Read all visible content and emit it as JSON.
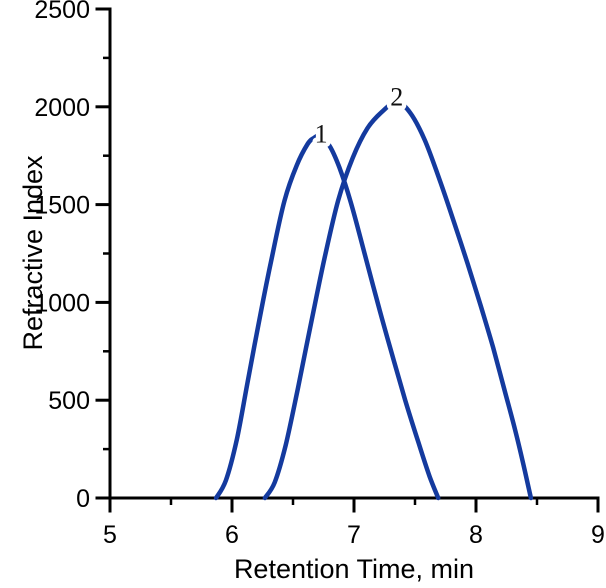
{
  "figure": {
    "background": "#ffffff"
  },
  "chart_data": {
    "type": "line",
    "title": "",
    "xlabel": "Retention Time, min",
    "ylabel": "Refractive Index",
    "xlim": [
      5,
      9
    ],
    "ylim": [
      0,
      2500
    ],
    "x_major_tick_step": 1,
    "x_minor_tick_step": 0.5,
    "y_major_tick_step": 500,
    "y_minor_tick_step": 250,
    "x_tick_labels": [
      "5",
      "6",
      "7",
      "8",
      "9"
    ],
    "y_tick_labels": [
      "0",
      "500",
      "1000",
      "1500",
      "2000",
      "2500"
    ],
    "grid": false,
    "legend": "none",
    "axis_color": "#000000",
    "text_color": "#000000",
    "line_color": "#143a9e",
    "series": [
      {
        "name": "peak-1",
        "peak_label": "1",
        "apex": {
          "retention_time_min": 6.72,
          "refractive_index": 1850
        },
        "baseline_start_min": 5.87,
        "baseline_end_min": 7.69,
        "points": [
          [
            5.87,
            0
          ],
          [
            5.95,
            90
          ],
          [
            6.04,
            300
          ],
          [
            6.13,
            600
          ],
          [
            6.23,
            930
          ],
          [
            6.33,
            1240
          ],
          [
            6.43,
            1520
          ],
          [
            6.53,
            1700
          ],
          [
            6.62,
            1810
          ],
          [
            6.67,
            1840
          ],
          [
            6.72,
            1850
          ],
          [
            6.8,
            1800
          ],
          [
            6.88,
            1690
          ],
          [
            6.97,
            1520
          ],
          [
            7.07,
            1290
          ],
          [
            7.18,
            1030
          ],
          [
            7.3,
            760
          ],
          [
            7.42,
            500
          ],
          [
            7.53,
            280
          ],
          [
            7.62,
            110
          ],
          [
            7.69,
            0
          ]
        ]
      },
      {
        "name": "peak-2",
        "peak_label": "2",
        "apex": {
          "retention_time_min": 7.35,
          "refractive_index": 2025
        },
        "baseline_start_min": 6.27,
        "baseline_end_min": 8.45,
        "points": [
          [
            6.27,
            0
          ],
          [
            6.35,
            80
          ],
          [
            6.44,
            270
          ],
          [
            6.54,
            560
          ],
          [
            6.65,
            900
          ],
          [
            6.76,
            1230
          ],
          [
            6.87,
            1520
          ],
          [
            6.99,
            1740
          ],
          [
            7.11,
            1890
          ],
          [
            7.23,
            1975
          ],
          [
            7.35,
            2025
          ],
          [
            7.46,
            1970
          ],
          [
            7.58,
            1830
          ],
          [
            7.7,
            1630
          ],
          [
            7.82,
            1410
          ],
          [
            7.93,
            1200
          ],
          [
            8.04,
            980
          ],
          [
            8.14,
            770
          ],
          [
            8.23,
            560
          ],
          [
            8.32,
            350
          ],
          [
            8.4,
            140
          ],
          [
            8.45,
            0
          ]
        ]
      }
    ],
    "annotations": [
      {
        "text": "1",
        "x": 6.73,
        "y": 1860
      },
      {
        "text": "2",
        "x": 7.35,
        "y": 2050
      }
    ]
  }
}
